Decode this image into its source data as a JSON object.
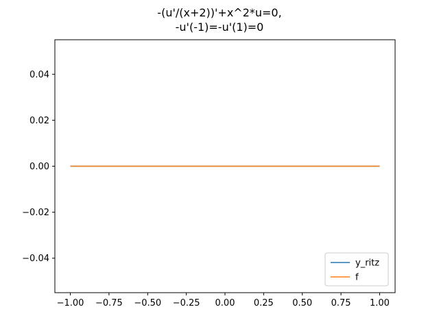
{
  "chart_data": {
    "type": "line",
    "title_lines": [
      "-(u'/(x+2))'+x^2*u=0,",
      "-u'(-1)=-u'(1)=0"
    ],
    "xlabel": "",
    "ylabel": "",
    "xlim": [
      -1.1,
      1.1
    ],
    "ylim": [
      -0.055,
      0.055
    ],
    "x_ticks": [
      -1.0,
      -0.75,
      -0.5,
      -0.25,
      0.0,
      0.25,
      0.5,
      0.75,
      1.0
    ],
    "x_tick_labels": [
      "−1.00",
      "−0.75",
      "−0.50",
      "−0.25",
      "0.00",
      "0.25",
      "0.50",
      "0.75",
      "1.00"
    ],
    "y_ticks": [
      0.04,
      0.02,
      0.0,
      -0.02,
      -0.04
    ],
    "y_tick_labels": [
      "0.04",
      "0.02",
      "0.00",
      "−0.02",
      "−0.04"
    ],
    "grid": false,
    "legend_position": "lower-right",
    "series": [
      {
        "name": "y_ritz",
        "color": "#1f77b4",
        "x": [
          -1.0,
          -0.5,
          0.0,
          0.5,
          1.0
        ],
        "y": [
          0,
          0,
          0,
          0,
          0
        ]
      },
      {
        "name": "f",
        "color": "#ff7f0e",
        "x": [
          -1.0,
          -0.5,
          0.0,
          0.5,
          1.0
        ],
        "y": [
          0,
          0,
          0,
          0,
          0
        ]
      }
    ]
  }
}
